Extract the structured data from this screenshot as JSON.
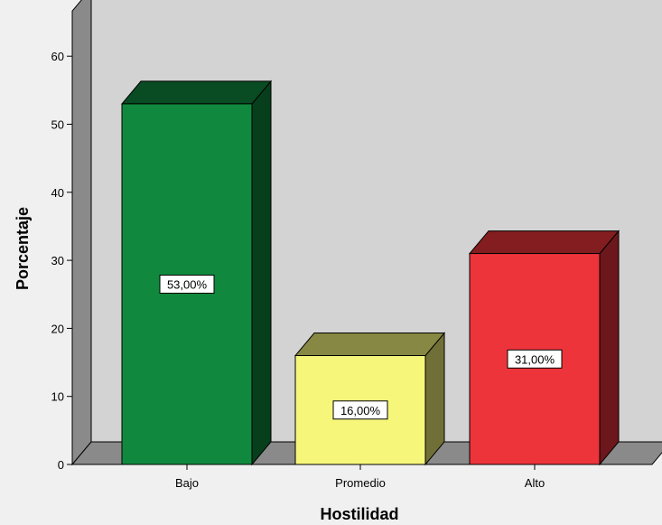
{
  "chart_data": {
    "type": "bar",
    "categories": [
      "Bajo",
      "Promedio",
      "Alto"
    ],
    "values": [
      53,
      16,
      31
    ],
    "data_labels": [
      "53,00%",
      "16,00%",
      "31,00%"
    ],
    "colors": [
      "#10893e",
      "#f6f77a",
      "#ee343b"
    ],
    "xlabel": "Hostilidad",
    "ylabel": "Porcentaje",
    "ylim": [
      0,
      60
    ],
    "yticks": [
      0,
      10,
      20,
      30,
      40,
      50,
      60
    ],
    "grid": false,
    "style": "3d"
  }
}
